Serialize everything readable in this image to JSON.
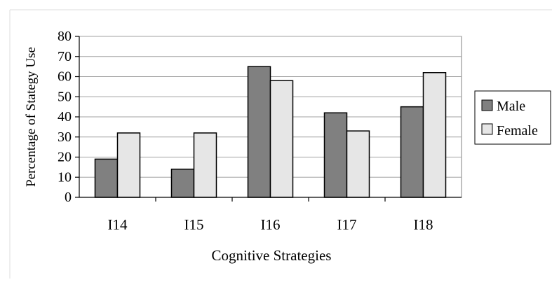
{
  "chart_data": {
    "type": "bar",
    "title": "",
    "xlabel": "Cognitive Strategies",
    "ylabel": "Percentage of Stategy Use",
    "categories": [
      "I14",
      "I15",
      "I16",
      "I17",
      "I18"
    ],
    "ylim": [
      0,
      80
    ],
    "yticks": [
      0,
      10,
      20,
      30,
      40,
      50,
      60,
      70,
      80
    ],
    "grid": true,
    "legend_position": "right",
    "series": [
      {
        "name": "Male",
        "values": [
          19,
          14,
          65,
          42,
          45
        ],
        "color": "#808080"
      },
      {
        "name": "Female",
        "values": [
          32,
          32,
          58,
          33,
          62
        ],
        "color": "#e6e6e6"
      }
    ]
  }
}
